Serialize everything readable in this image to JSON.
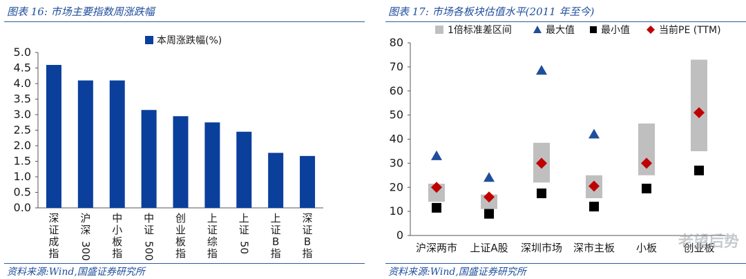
{
  "charts": {
    "left": {
      "title": "图表 16:  市场主要指数周涨跌幅",
      "source": "资料来源:Wind,国盛证券研究所"
    },
    "right": {
      "title": "图表 17:  市场各板块估值水平(2011 年至今)",
      "source": "资料来源:Wind,国盛证券研究所"
    }
  },
  "watermark": "老望后势",
  "colors": {
    "bar": "#0a3f9c",
    "band": "#bfbfbf",
    "max_marker": "#1f4e9c",
    "min_marker": "#000000",
    "current_marker": "#c00000"
  },
  "chart_data": [
    {
      "type": "bar",
      "categories": [
        "深证成指",
        "沪深300",
        "中小板指",
        "中证500",
        "创业板指",
        "上证综指",
        "上证50",
        "上证B指",
        "深证B指"
      ],
      "category_label_lines": [
        [
          "深",
          "证",
          "成",
          "指"
        ],
        [
          "沪",
          "深",
          "300"
        ],
        [
          "中",
          "小",
          "板",
          "指"
        ],
        [
          "中",
          "证",
          "500"
        ],
        [
          "创",
          "业",
          "板",
          "指"
        ],
        [
          "上",
          "证",
          "综",
          "指"
        ],
        [
          "上",
          "证",
          "50"
        ],
        [
          "上",
          "证",
          "B",
          "指"
        ],
        [
          "深",
          "证",
          "B",
          "指"
        ]
      ],
      "series": [
        {
          "name": "本周涨跌幅(%)",
          "values": [
            4.6,
            4.1,
            4.1,
            3.15,
            2.95,
            2.75,
            2.45,
            1.77,
            1.67
          ]
        }
      ],
      "yticks": [
        "5.0",
        "4.5",
        "4.0",
        "3.5",
        "3.0",
        "2.5",
        "2.0",
        "1.5",
        "1.0",
        "0.5",
        "0.0"
      ],
      "ylim": [
        0,
        5.0
      ],
      "legend_position": "top-left",
      "grid": false
    },
    {
      "type": "scatter",
      "categories": [
        "沪深两市",
        "上证A股",
        "深圳市场",
        "深市主板",
        "中小板",
        "创业板"
      ],
      "category_labels_visible": [
        "沪深两市",
        "上证A股",
        "深圳市场",
        "深市主板",
        "小板",
        "创业板"
      ],
      "legend": [
        "1倍标准差区间",
        "最大值",
        "最小值",
        "当前PE (TTM)"
      ],
      "band_low": [
        14,
        11,
        22,
        15.5,
        25,
        35
      ],
      "band_high": [
        21.5,
        17,
        38.5,
        25,
        46.5,
        73
      ],
      "max": [
        33,
        24,
        68.5,
        42,
        null,
        null
      ],
      "min": [
        11.5,
        9,
        17.5,
        12,
        19.5,
        27
      ],
      "current": [
        20,
        16,
        30,
        20.5,
        30,
        51
      ],
      "yticks": [
        "80",
        "70",
        "60",
        "50",
        "40",
        "30",
        "20",
        "10",
        "0"
      ],
      "ylim": [
        0,
        80
      ],
      "legend_position": "top",
      "grid": false
    }
  ]
}
